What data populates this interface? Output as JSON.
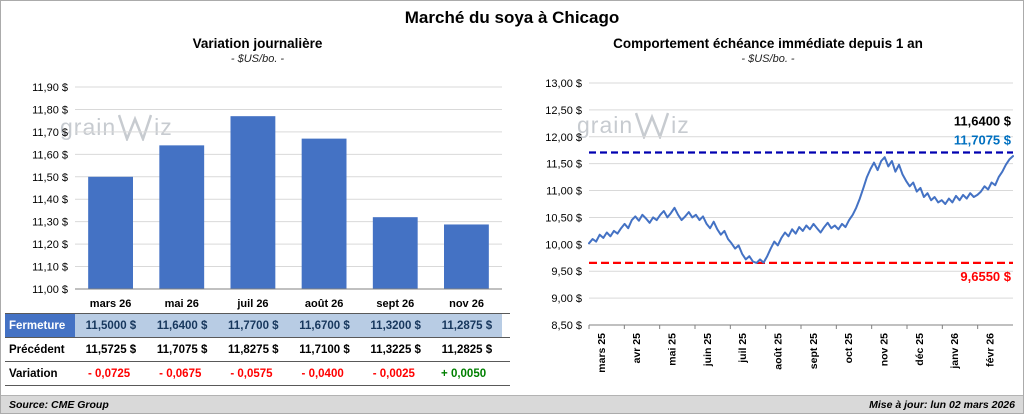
{
  "page": {
    "title": "Marché du soya à Chicago",
    "source": "Source: CME Group",
    "updated": "Mise à jour: lun 02 mars 2026"
  },
  "branding": {
    "grain": "grain",
    "iz": "iz"
  },
  "colors": {
    "bar": "#4472C4",
    "line": "#4472C4",
    "grid": "#D9D9D9",
    "axis": "#808080",
    "prev_line": "#0000B0",
    "prev_label": "#0070C0",
    "low_line": "#FF0000",
    "table_header_bg": "#4472C4",
    "table_row_bg": "#B8CCE4",
    "negative": "#FF0000",
    "positive": "#008000"
  },
  "chart_data": [
    {
      "type": "bar",
      "title": "Variation journalière",
      "subtitle": "- $US/bo. -",
      "categories": [
        "mars 26",
        "mai 26",
        "juil 26",
        "août 26",
        "sept 26",
        "nov 26"
      ],
      "values": [
        11.5,
        11.64,
        11.77,
        11.67,
        11.32,
        11.2875
      ],
      "ylim": [
        11.0,
        11.9
      ],
      "ytick_step": 0.1,
      "ytick_format": "fr-currency",
      "grid": true,
      "legend": false
    },
    {
      "type": "line",
      "title": "Comportement échéance immédiate depuis 1 an",
      "subtitle": "- $US/bo. -",
      "x_labels": [
        "mars 25",
        "avr 25",
        "mai 25",
        "juin 25",
        "juil 25",
        "août 25",
        "sept 25",
        "oct 25",
        "nov 25",
        "déc 25",
        "janv 26",
        "févr 26"
      ],
      "values": [
        10.02,
        10.1,
        10.05,
        10.18,
        10.12,
        10.22,
        10.15,
        10.25,
        10.2,
        10.3,
        10.38,
        10.3,
        10.45,
        10.52,
        10.44,
        10.55,
        10.48,
        10.4,
        10.5,
        10.45,
        10.55,
        10.62,
        10.5,
        10.58,
        10.68,
        10.55,
        10.45,
        10.52,
        10.6,
        10.5,
        10.55,
        10.45,
        10.52,
        10.38,
        10.3,
        10.42,
        10.28,
        10.18,
        10.25,
        10.1,
        10.02,
        9.92,
        9.98,
        9.82,
        9.72,
        9.78,
        9.68,
        9.655,
        9.72,
        9.66,
        9.78,
        9.92,
        10.05,
        9.98,
        10.12,
        10.22,
        10.15,
        10.28,
        10.2,
        10.32,
        10.25,
        10.35,
        10.28,
        10.38,
        10.3,
        10.22,
        10.32,
        10.4,
        10.3,
        10.35,
        10.28,
        10.38,
        10.32,
        10.45,
        10.55,
        10.68,
        10.85,
        11.05,
        11.25,
        11.4,
        11.52,
        11.38,
        11.55,
        11.62,
        11.45,
        11.55,
        11.35,
        11.48,
        11.3,
        11.18,
        11.08,
        11.15,
        10.98,
        11.05,
        10.88,
        10.95,
        10.82,
        10.88,
        10.78,
        10.82,
        10.75,
        10.85,
        10.78,
        10.9,
        10.82,
        10.92,
        10.85,
        10.95,
        10.88,
        10.92,
        10.98,
        11.08,
        11.02,
        11.15,
        11.1,
        11.25,
        11.35,
        11.48,
        11.58,
        11.64
      ],
      "ylim": [
        8.5,
        13.0
      ],
      "ytick_step": 0.5,
      "grid": true,
      "legend": false,
      "annotations": {
        "last_label": "11,6400 $",
        "prev_value": 11.7075,
        "prev_label": "11,7075 $",
        "low_value": 9.655,
        "low_label": "9,6550 $"
      }
    }
  ],
  "table": {
    "rows": [
      {
        "label": "Fermeture",
        "values": [
          "11,5000 $",
          "11,6400 $",
          "11,7700 $",
          "11,6700 $",
          "11,3200 $",
          "11,2875 $"
        ]
      },
      {
        "label": "Précédent",
        "values": [
          "11,5725 $",
          "11,7075 $",
          "11,8275 $",
          "11,7100 $",
          "11,3225 $",
          "11,2825 $"
        ]
      },
      {
        "label": "Variation",
        "values": [
          "- 0,0725",
          "- 0,0675",
          "- 0,0575",
          "- 0,0400",
          "- 0,0025",
          "+ 0,0050"
        ],
        "signs": [
          "neg",
          "neg",
          "neg",
          "neg",
          "neg",
          "pos"
        ]
      }
    ]
  }
}
